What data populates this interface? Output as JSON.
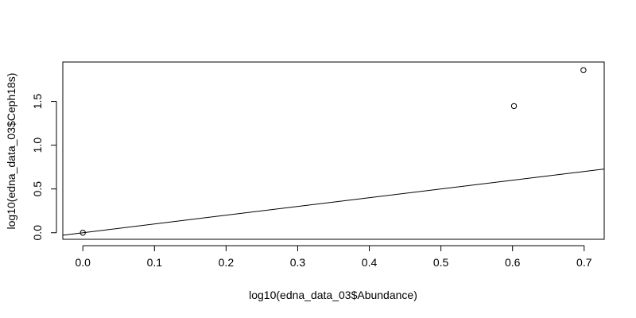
{
  "chart_data": {
    "type": "scatter",
    "title": "",
    "xlabel": "log10(edna_data_03$Abundance)",
    "ylabel": "log10(edna_data_03$Ceph18s)",
    "xlim": [
      -0.028,
      0.728
    ],
    "ylim": [
      -0.075,
      1.95
    ],
    "x_ticks": [
      "0.0",
      "0.1",
      "0.2",
      "0.3",
      "0.4",
      "0.5",
      "0.6",
      "0.7"
    ],
    "y_ticks": [
      "0.0",
      "0.5",
      "1.0",
      "1.5"
    ],
    "points": [
      {
        "x": 0.0,
        "y": 0.0
      },
      {
        "x": 0.602,
        "y": 1.447
      },
      {
        "x": 0.699,
        "y": 1.857
      }
    ],
    "reference_line": {
      "intercept": 0,
      "slope": 1
    },
    "grid": false,
    "legend": "none"
  }
}
